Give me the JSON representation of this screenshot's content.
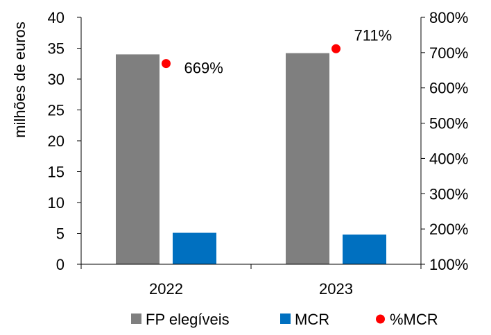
{
  "chart_data": {
    "type": "bar",
    "categories": [
      "2022",
      "2023"
    ],
    "ylabel": "milhões de euros",
    "ylim": [
      0,
      40
    ],
    "yticks": [
      "0",
      "5",
      "10",
      "15",
      "20",
      "25",
      "30",
      "35",
      "40"
    ],
    "y2lim": [
      100,
      800
    ],
    "y2ticks": [
      "100%",
      "200%",
      "300%",
      "400%",
      "500%",
      "600%",
      "700%",
      "800%"
    ],
    "grid": false,
    "legend_position": "bottom",
    "series": [
      {
        "name": "FP elegíveis",
        "type": "bar",
        "axis": "left",
        "color": "#7f7f7f",
        "values": [
          34.0,
          34.2
        ]
      },
      {
        "name": "MCR",
        "type": "bar",
        "axis": "left",
        "color": "#0070c0",
        "values": [
          5.1,
          4.8
        ]
      },
      {
        "name": "%MCR",
        "type": "scatter",
        "axis": "right",
        "color": "#ff0000",
        "values": [
          669,
          711
        ],
        "labels": [
          "669%",
          "711%"
        ]
      }
    ]
  }
}
